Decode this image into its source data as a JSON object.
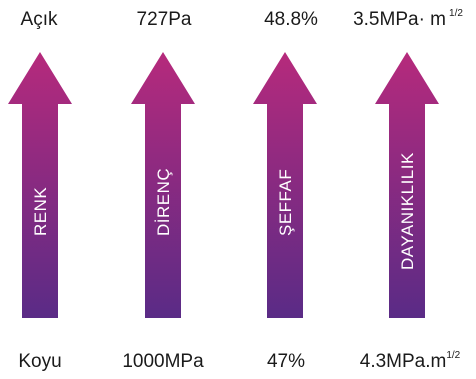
{
  "columns": [
    {
      "top_value": "Açık",
      "property": "RENK",
      "bottom_value": "Koyu"
    },
    {
      "top_value": "727Pa",
      "property": "DİRENÇ",
      "bottom_value": "1000MPa"
    },
    {
      "top_value": "48.8%",
      "property": "ŞEFFAF",
      "bottom_value": "47%"
    },
    {
      "top_value": "3.5MPa· m",
      "top_value_exponent": "1/2",
      "property": "DAYANIKLILIK",
      "bottom_value": "4.3MPa.m",
      "bottom_value_exponent": "1/2"
    }
  ],
  "colors": {
    "arrow_top": "#b62a7c",
    "arrow_bottom": "#5a2b86",
    "text": "#1a1a1a"
  }
}
